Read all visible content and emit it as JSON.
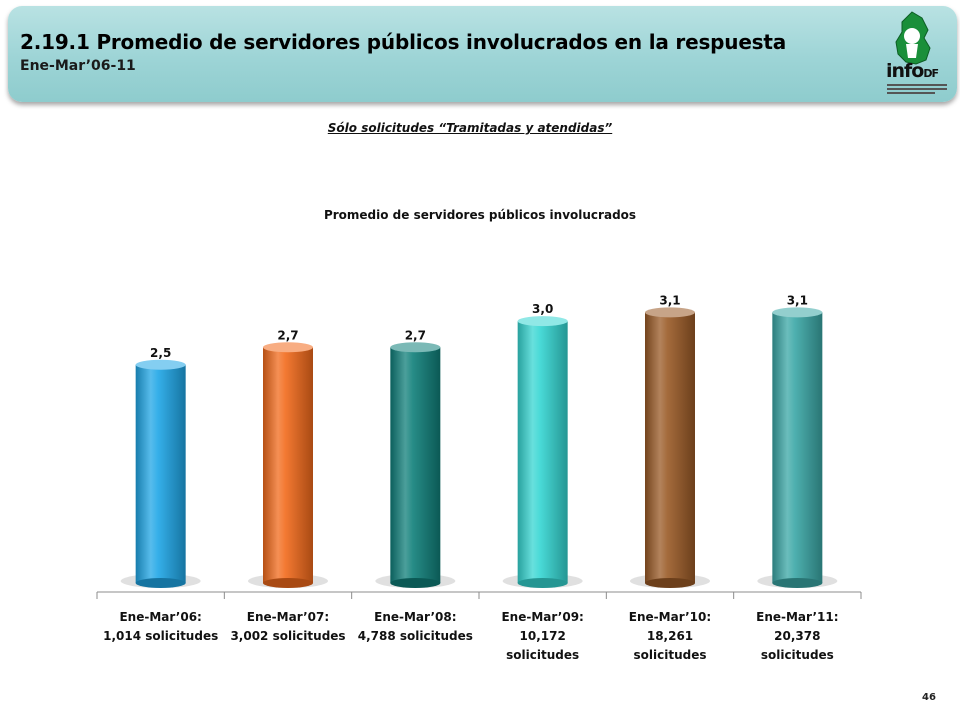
{
  "header": {
    "number": "2.19.1",
    "title": "Promedio de servidores públicos involucrados en la respuesta",
    "subtitle": "Ene-Mar’06-11"
  },
  "logo": {
    "text": "info",
    "subtext": "DF"
  },
  "note": "Sólo solicitudes “Tramitadas y atendidas”",
  "page_number": "46",
  "chart_data": {
    "type": "bar",
    "title": "Promedio de servidores públicos involucrados",
    "categories": [
      [
        "Ene-Mar’06:",
        "1,014 solicitudes"
      ],
      [
        "Ene-Mar’07:",
        "3,002 solicitudes"
      ],
      [
        "Ene-Mar’08:",
        "4,788 solicitudes"
      ],
      [
        "Ene-Mar’09:",
        "10,172",
        "solicitudes"
      ],
      [
        "Ene-Mar’10:",
        "18,261",
        "solicitudes"
      ],
      [
        "Ene-Mar’11:",
        "20,378",
        "solicitudes"
      ]
    ],
    "values": [
      2.5,
      2.7,
      2.7,
      3.0,
      3.1,
      3.1
    ],
    "data_labels": [
      "2,5",
      "2,7",
      "2,7",
      "3,0",
      "3,1",
      "3,1"
    ],
    "colors": [
      "#1fa6e6",
      "#f26a1b",
      "#0f7f7a",
      "#35d6d2",
      "#9a5a26",
      "#3aa7a6"
    ],
    "ylim": [
      0,
      3.4
    ],
    "grid": false,
    "legend": "none",
    "style": "3d-cylinder"
  }
}
